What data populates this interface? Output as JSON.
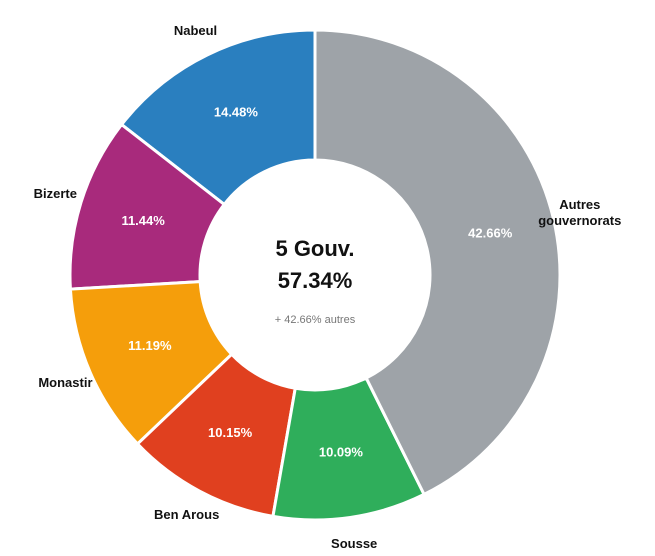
{
  "chart_data": {
    "type": "donut",
    "categories": [
      "Autres gouvernorats",
      "Sousse",
      "Ben Arous",
      "Monastir",
      "Bizerte",
      "Nabeul"
    ],
    "values": [
      42.66,
      10.09,
      10.15,
      11.19,
      11.44,
      14.48
    ],
    "value_labels": [
      "42.66%",
      "10.09%",
      "10.15%",
      "11.19%",
      "11.44%",
      "14.48%"
    ],
    "colors": [
      "#9ea3a8",
      "#2fae5b",
      "#e0401f",
      "#f59e0b",
      "#a82a7c",
      "#2a7fbf"
    ],
    "center_title": "5 Gouv.",
    "center_value": "57.34%",
    "center_note": "+ 42.66% autres"
  }
}
